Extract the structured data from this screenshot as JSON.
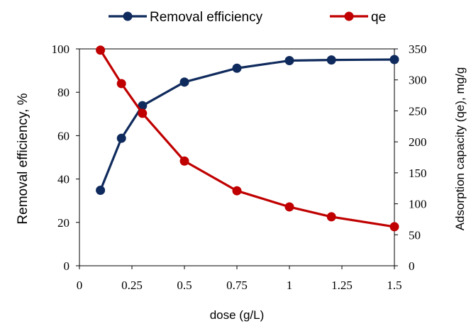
{
  "chart_data": {
    "type": "line",
    "x": [
      0.1,
      0.2,
      0.3,
      0.5,
      0.75,
      1.0,
      1.2,
      1.5
    ],
    "series": [
      {
        "name": "Removal efficiency",
        "axis": "left",
        "color": "#0f2a5c",
        "values": [
          34.8,
          58.8,
          73.8,
          84.7,
          91.1,
          94.6,
          94.9,
          95.1
        ]
      },
      {
        "name": "qe",
        "axis": "right",
        "color": "#c00000",
        "values": [
          348,
          294,
          246,
          169,
          121,
          95,
          79,
          63
        ]
      }
    ],
    "xlabel": "dose (g/L)",
    "ylabel": "Removal efficiency, %",
    "y2label": "Adsorption capacity (qe), mg/g",
    "xlim": [
      0,
      1.5
    ],
    "ylim": [
      0,
      100
    ],
    "y2lim": [
      0,
      350
    ],
    "x_ticks": [
      0,
      0.25,
      0.5,
      0.75,
      1,
      1.25,
      1.5
    ],
    "x_tick_labels": [
      "0",
      "0.25",
      "0.5",
      "0.75",
      "1",
      "1.25",
      "1.5"
    ],
    "y_ticks": [
      0,
      20,
      40,
      60,
      80,
      100
    ],
    "y_tick_labels": [
      "0",
      "20",
      "40",
      "60",
      "80",
      "100"
    ],
    "y2_ticks": [
      0,
      50,
      100,
      150,
      200,
      250,
      300,
      350
    ],
    "y2_tick_labels": [
      "0",
      "50",
      "100",
      "150",
      "200",
      "250",
      "300",
      "350"
    ],
    "grid": false,
    "legend_position": "top-center"
  }
}
